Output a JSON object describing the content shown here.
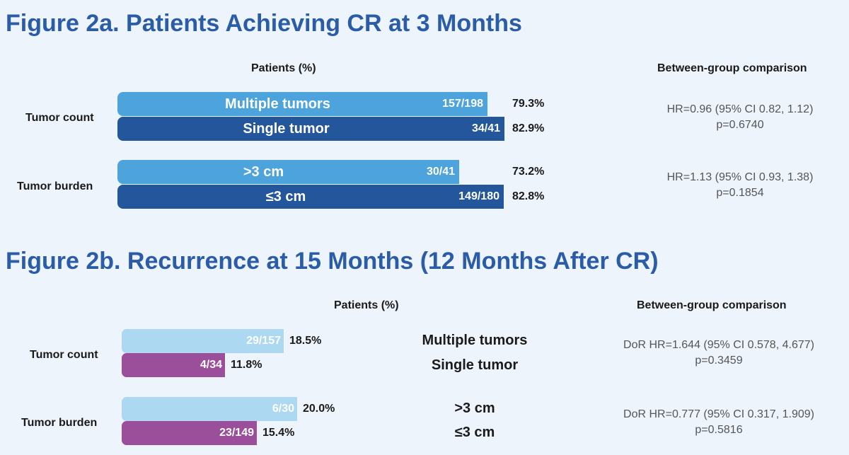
{
  "colors": {
    "title": "#2a5ca8",
    "bar_light_blue": "#4da3dc",
    "bar_dark_blue": "#24569b",
    "bar_pale_blue": "#acd8f1",
    "bar_purple": "#9b4f9b"
  },
  "figure_a": {
    "title": "Figure 2a. Patients Achieving CR at 3 Months",
    "x_header": "Patients (%)",
    "comparison_header": "Between-group comparison",
    "groups": [
      {
        "label": "Tumor count",
        "bars": [
          {
            "category": "Multiple tumors",
            "fraction": "157/198",
            "value_label": "79.3%"
          },
          {
            "category": "Single tumor",
            "fraction": "34/41",
            "value_label": "82.9%"
          }
        ],
        "comparison": {
          "line1": "HR=0.96 (95% CI 0.82, 1.12)",
          "line2": "p=0.6740"
        }
      },
      {
        "label": "Tumor burden",
        "bars": [
          {
            "category": ">3 cm",
            "fraction": "30/41",
            "value_label": "73.2%"
          },
          {
            "category": "≤3 cm",
            "fraction": "149/180",
            "value_label": "82.8%"
          }
        ],
        "comparison": {
          "line1": "HR=1.13 (95% CI 0.93, 1.38)",
          "line2": "p=0.1854"
        }
      }
    ]
  },
  "figure_b": {
    "title": "Figure 2b. Recurrence at 15 Months (12 Months After CR)",
    "x_header": "Patients (%)",
    "comparison_header": "Between-group comparison",
    "groups": [
      {
        "label": "Tumor count",
        "bars": [
          {
            "category": "Multiple tumors",
            "fraction": "29/157",
            "value_label": "18.5%"
          },
          {
            "category": "Single tumor",
            "fraction": "4/34",
            "value_label": "11.8%"
          }
        ],
        "comparison": {
          "line1": "DoR HR=1.644 (95% CI 0.578, 4.677)",
          "line2": "p=0.3459"
        }
      },
      {
        "label": "Tumor burden",
        "bars": [
          {
            "category": ">3 cm",
            "fraction": "6/30",
            "value_label": "20.0%"
          },
          {
            "category": "≤3 cm",
            "fraction": "23/149",
            "value_label": "15.4%"
          }
        ],
        "comparison": {
          "line1": "DoR HR=0.777 (95% CI 0.317, 1.909)",
          "line2": "p=0.5816"
        }
      }
    ]
  },
  "chart_data": [
    {
      "type": "bar",
      "orientation": "horizontal",
      "title": "Figure 2a. Patients Achieving CR at 3 Months",
      "xlabel": "Patients (%)",
      "groups": [
        "Tumor count",
        "Tumor burden"
      ],
      "series": [
        {
          "name": "Multiple tumors",
          "group": "Tumor count",
          "value": 79.3,
          "fraction": "157/198"
        },
        {
          "name": "Single tumor",
          "group": "Tumor count",
          "value": 82.9,
          "fraction": "34/41"
        },
        {
          "name": ">3 cm",
          "group": "Tumor burden",
          "value": 73.2,
          "fraction": "30/41"
        },
        {
          "name": "≤3 cm",
          "group": "Tumor burden",
          "value": 82.8,
          "fraction": "149/180"
        }
      ]
    },
    {
      "type": "bar",
      "orientation": "horizontal",
      "title": "Figure 2b. Recurrence at 15 Months (12 Months After CR)",
      "xlabel": "Patients (%)",
      "groups": [
        "Tumor count",
        "Tumor burden"
      ],
      "series": [
        {
          "name": "Multiple tumors",
          "group": "Tumor count",
          "value": 18.5,
          "fraction": "29/157"
        },
        {
          "name": "Single tumor",
          "group": "Tumor count",
          "value": 11.8,
          "fraction": "4/34"
        },
        {
          "name": ">3 cm",
          "group": "Tumor burden",
          "value": 20.0,
          "fraction": "6/30"
        },
        {
          "name": "≤3 cm",
          "group": "Tumor burden",
          "value": 15.4,
          "fraction": "23/149"
        }
      ]
    }
  ]
}
